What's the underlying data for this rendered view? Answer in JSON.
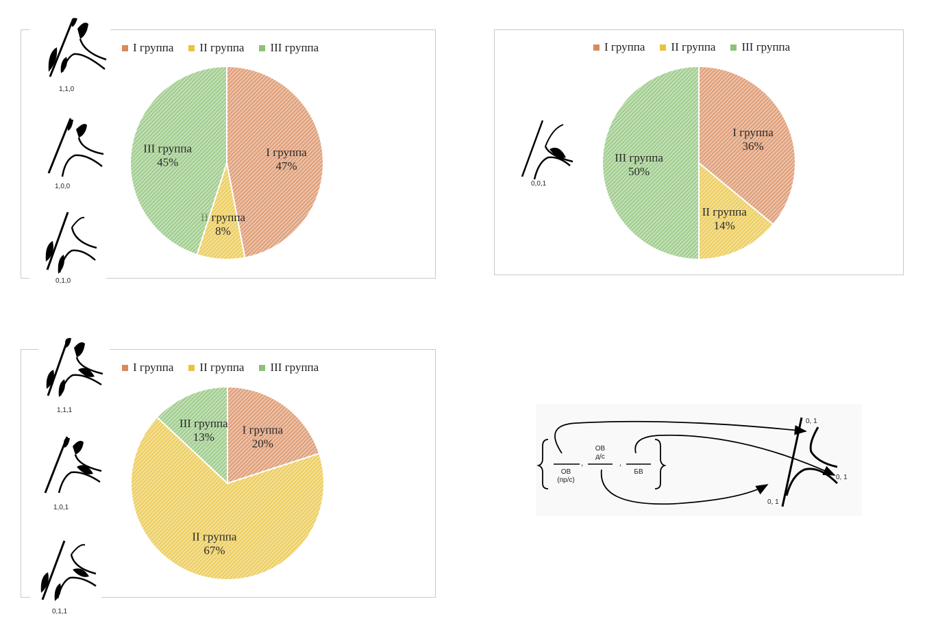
{
  "colors": {
    "group1": "#d98a5c",
    "group2": "#e8c33c",
    "group3": "#8cc276",
    "border": "#c9c9c9"
  },
  "legend": [
    "I группа",
    "II группа",
    "III группа"
  ],
  "chart_data": [
    {
      "type": "pie",
      "categories": [
        "I группа",
        "II группа",
        "III группа"
      ],
      "values": [
        47,
        8,
        45
      ],
      "labels": [
        "47%",
        "8%",
        "45%"
      ],
      "legend_position": "top"
    },
    {
      "type": "pie",
      "categories": [
        "I группа",
        "II группа",
        "III группа"
      ],
      "values": [
        36,
        14,
        50
      ],
      "labels": [
        "36%",
        "14%",
        "50%"
      ],
      "legend_position": "top"
    },
    {
      "type": "pie",
      "categories": [
        "I группа",
        "II группа",
        "III группа"
      ],
      "values": [
        20,
        67,
        13
      ],
      "labels": [
        "20%",
        "67%",
        "13%"
      ],
      "legend_position": "top"
    }
  ],
  "thumbnails": {
    "chart1": [
      "1,1,0",
      "1,0,0",
      "0,1,0"
    ],
    "chart2": [
      "0,0,1"
    ],
    "chart3": [
      "1,1,1",
      "1,0,1",
      "0,1,1"
    ]
  },
  "scheme": {
    "terms": [
      "ОВ",
      "(пр/с)",
      "ОВ",
      "д/с",
      "БВ"
    ],
    "separators": [
      ",",
      ","
    ],
    "values": [
      "0, 1",
      "0, 1",
      "0, 1"
    ]
  }
}
